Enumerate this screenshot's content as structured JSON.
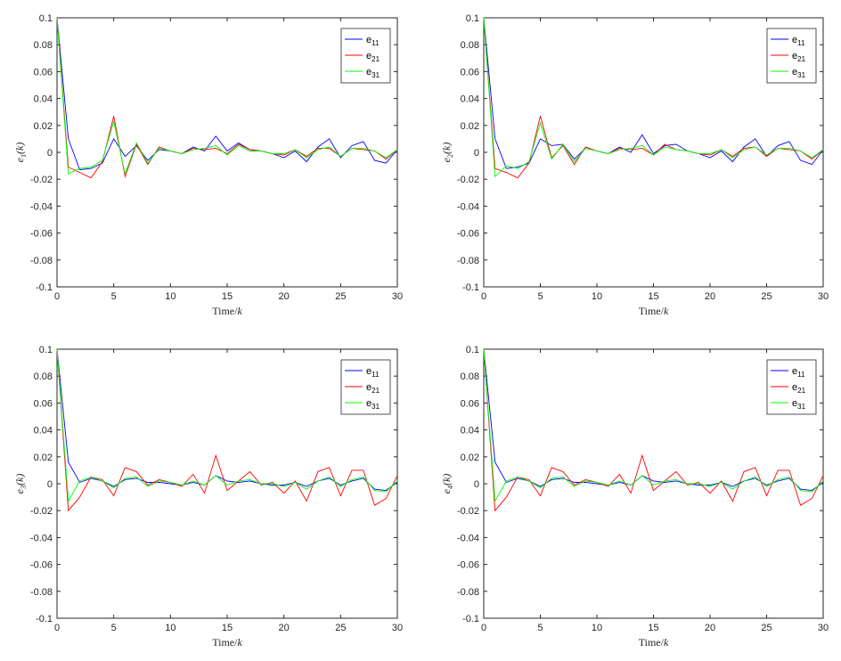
{
  "colors": {
    "e11": "#0000ff",
    "e21": "#ff0000",
    "e31": "#00ff00",
    "axis": "#262626"
  },
  "chart_data": [
    {
      "type": "line",
      "ylabel": {
        "base": "e",
        "sub": "1",
        "arg": "(k)"
      },
      "xlabel": {
        "text": "Time/",
        "italic": "k"
      },
      "xlim": [
        0,
        30
      ],
      "ylim": [
        -0.1,
        0.1
      ],
      "xticks": [
        "0",
        "5",
        "10",
        "15",
        "20",
        "25",
        "30"
      ],
      "yticks": [
        "-0.1",
        "-0.08",
        "-0.06",
        "-0.04",
        "-0.02",
        "0",
        "0.02",
        "0.04",
        "0.06",
        "0.08",
        "0.1"
      ],
      "legend_position": "top-right",
      "x": [
        0,
        1,
        2,
        3,
        4,
        5,
        6,
        7,
        8,
        9,
        10,
        11,
        12,
        13,
        14,
        15,
        16,
        17,
        18,
        19,
        20,
        21,
        22,
        23,
        24,
        25,
        26,
        27,
        28,
        29,
        30
      ],
      "series": [
        {
          "name": "e",
          "sub": "11",
          "color": "#0000ff",
          "values": [
            0.1,
            0.01,
            -0.013,
            -0.012,
            -0.008,
            0.01,
            -0.003,
            0.005,
            -0.006,
            0.002,
            0.001,
            -0.001,
            0.004,
            0.001,
            0.012,
            0.001,
            0.007,
            0.002,
            0.001,
            -0.001,
            -0.004,
            0.001,
            -0.007,
            0.004,
            0.01,
            -0.004,
            0.005,
            0.008,
            -0.006,
            -0.008,
            0.002
          ]
        },
        {
          "name": "e",
          "sub": "21",
          "color": "#ff0000",
          "values": [
            0.1,
            -0.011,
            -0.015,
            -0.019,
            -0.007,
            0.027,
            -0.018,
            0.006,
            -0.009,
            0.004,
            0.001,
            -0.001,
            0.003,
            0.002,
            0.003,
            -0.001,
            0.006,
            0.002,
            0.001,
            -0.001,
            -0.002,
            0.002,
            -0.003,
            0.003,
            0.003,
            -0.003,
            0.003,
            0.002,
            0.001,
            -0.005,
            0.002
          ]
        },
        {
          "name": "e",
          "sub": "31",
          "color": "#00ff00",
          "values": [
            0.1,
            -0.016,
            -0.012,
            -0.011,
            -0.006,
            0.023,
            -0.016,
            0.007,
            -0.008,
            0.003,
            0.001,
            -0.001,
            0.002,
            0.003,
            0.005,
            -0.002,
            0.005,
            0.001,
            0.001,
            -0.001,
            -0.001,
            0.002,
            -0.004,
            0.002,
            0.004,
            -0.003,
            0.003,
            0.003,
            0.001,
            -0.004,
            0.002
          ]
        }
      ]
    },
    {
      "type": "line",
      "ylabel": {
        "base": "e",
        "sub": "2",
        "arg": "(k)"
      },
      "xlabel": {
        "text": "Time/",
        "italic": "k"
      },
      "xlim": [
        0,
        30
      ],
      "ylim": [
        -0.1,
        0.1
      ],
      "xticks": [
        "0",
        "5",
        "10",
        "15",
        "20",
        "25",
        "30"
      ],
      "yticks": [
        "-0.1",
        "-0.08",
        "-0.06",
        "-0.04",
        "-0.02",
        "0",
        "0.02",
        "0.04",
        "0.06",
        "0.08",
        "0.1"
      ],
      "legend_position": "top-right",
      "x": [
        0,
        1,
        2,
        3,
        4,
        5,
        6,
        7,
        8,
        9,
        10,
        11,
        12,
        13,
        14,
        15,
        16,
        17,
        18,
        19,
        20,
        21,
        22,
        23,
        24,
        25,
        26,
        27,
        28,
        29,
        30
      ],
      "series": [
        {
          "name": "e",
          "sub": "11",
          "color": "#0000ff",
          "values": [
            0.1,
            0.01,
            -0.012,
            -0.011,
            -0.008,
            0.01,
            0.005,
            0.006,
            -0.005,
            0.003,
            0.001,
            -0.001,
            0.004,
            0.0,
            0.013,
            -0.001,
            0.005,
            0.006,
            0.001,
            -0.001,
            -0.004,
            0.001,
            -0.007,
            0.004,
            0.01,
            -0.003,
            0.005,
            0.008,
            -0.006,
            -0.009,
            0.002
          ]
        },
        {
          "name": "e",
          "sub": "21",
          "color": "#ff0000",
          "values": [
            0.1,
            -0.012,
            -0.015,
            -0.019,
            -0.008,
            0.027,
            -0.004,
            0.005,
            -0.009,
            0.004,
            0.001,
            -0.001,
            0.003,
            0.002,
            0.003,
            -0.002,
            0.006,
            0.002,
            0.001,
            -0.001,
            -0.002,
            0.002,
            -0.003,
            0.003,
            0.004,
            -0.003,
            0.003,
            0.002,
            0.001,
            -0.005,
            0.002
          ]
        },
        {
          "name": "e",
          "sub": "31",
          "color": "#00ff00",
          "values": [
            0.1,
            -0.018,
            -0.01,
            -0.012,
            -0.007,
            0.022,
            -0.005,
            0.006,
            -0.007,
            0.003,
            0.001,
            -0.001,
            0.002,
            0.003,
            0.005,
            -0.002,
            0.004,
            0.002,
            0.001,
            -0.001,
            -0.001,
            0.002,
            -0.004,
            0.002,
            0.004,
            -0.002,
            0.003,
            0.003,
            0.001,
            -0.004,
            0.002
          ]
        }
      ]
    },
    {
      "type": "line",
      "ylabel": {
        "base": "e",
        "sub": "3",
        "arg": "(k)"
      },
      "xlabel": {
        "text": "Time/",
        "italic": "k"
      },
      "xlim": [
        0,
        30
      ],
      "ylim": [
        -0.1,
        0.1
      ],
      "xticks": [
        "0",
        "5",
        "10",
        "15",
        "20",
        "25",
        "30"
      ],
      "yticks": [
        "-0.1",
        "-0.08",
        "-0.06",
        "-0.04",
        "-0.02",
        "0",
        "0.02",
        "0.04",
        "0.06",
        "0.08",
        "0.1"
      ],
      "legend_position": "top-right",
      "x": [
        0,
        1,
        2,
        3,
        4,
        5,
        6,
        7,
        8,
        9,
        10,
        11,
        12,
        13,
        14,
        15,
        16,
        17,
        18,
        19,
        20,
        21,
        22,
        23,
        24,
        25,
        26,
        27,
        28,
        29,
        30
      ],
      "series": [
        {
          "name": "e",
          "sub": "11",
          "color": "#0000ff",
          "values": [
            0.1,
            0.016,
            0.001,
            0.004,
            0.002,
            -0.002,
            0.003,
            0.004,
            0.001,
            0.001,
            0.0,
            -0.001,
            0.001,
            -0.001,
            0.006,
            0.002,
            0.001,
            0.002,
            0.0,
            -0.001,
            -0.001,
            0.001,
            -0.002,
            0.002,
            0.004,
            -0.001,
            0.002,
            0.004,
            -0.004,
            -0.005,
            0.001
          ]
        },
        {
          "name": "e",
          "sub": "21",
          "color": "#ff0000",
          "values": [
            0.1,
            -0.02,
            -0.01,
            0.005,
            0.003,
            -0.009,
            0.012,
            0.009,
            -0.001,
            0.003,
            0.001,
            -0.002,
            0.007,
            -0.007,
            0.021,
            -0.005,
            0.002,
            0.009,
            -0.001,
            0.001,
            -0.007,
            0.002,
            -0.013,
            0.009,
            0.012,
            -0.009,
            0.01,
            0.01,
            -0.016,
            -0.011,
            0.006
          ]
        },
        {
          "name": "e",
          "sub": "31",
          "color": "#00ff00",
          "values": [
            0.1,
            -0.013,
            0.002,
            0.005,
            0.002,
            -0.003,
            0.004,
            0.005,
            -0.002,
            0.002,
            0.001,
            -0.001,
            0.002,
            -0.001,
            0.006,
            -0.001,
            0.002,
            0.003,
            0.0,
            0.0,
            -0.002,
            0.001,
            -0.004,
            0.002,
            0.005,
            -0.002,
            0.003,
            0.005,
            -0.005,
            -0.006,
            0.002
          ]
        }
      ]
    },
    {
      "type": "line",
      "ylabel": {
        "base": "e",
        "sub": "4",
        "arg": "(k)"
      },
      "xlabel": {
        "text": "Time/",
        "italic": "k"
      },
      "xlim": [
        0,
        30
      ],
      "ylim": [
        -0.1,
        0.1
      ],
      "xticks": [
        "0",
        "5",
        "10",
        "15",
        "20",
        "25",
        "30"
      ],
      "yticks": [
        "-0.1",
        "-0.08",
        "-0.06",
        "-0.04",
        "-0.02",
        "0",
        "0.02",
        "0.04",
        "0.06",
        "0.08",
        "0.1"
      ],
      "legend_position": "top-right",
      "x": [
        0,
        1,
        2,
        3,
        4,
        5,
        6,
        7,
        8,
        9,
        10,
        11,
        12,
        13,
        14,
        15,
        16,
        17,
        18,
        19,
        20,
        21,
        22,
        23,
        24,
        25,
        26,
        27,
        28,
        29,
        30
      ],
      "series": [
        {
          "name": "e",
          "sub": "11",
          "color": "#0000ff",
          "values": [
            0.1,
            0.016,
            0.001,
            0.004,
            0.002,
            -0.002,
            0.003,
            0.004,
            0.001,
            0.001,
            0.0,
            -0.001,
            0.001,
            -0.001,
            0.006,
            0.002,
            0.001,
            0.002,
            0.0,
            -0.001,
            -0.001,
            0.001,
            -0.002,
            0.002,
            0.004,
            -0.001,
            0.002,
            0.004,
            -0.004,
            -0.005,
            0.001
          ]
        },
        {
          "name": "e",
          "sub": "21",
          "color": "#ff0000",
          "values": [
            0.1,
            -0.02,
            -0.01,
            0.005,
            0.003,
            -0.009,
            0.012,
            0.009,
            -0.001,
            0.003,
            0.001,
            -0.002,
            0.007,
            -0.007,
            0.021,
            -0.005,
            0.002,
            0.009,
            -0.001,
            0.001,
            -0.007,
            0.002,
            -0.013,
            0.009,
            0.012,
            -0.009,
            0.01,
            0.01,
            -0.016,
            -0.011,
            0.006
          ]
        },
        {
          "name": "e",
          "sub": "31",
          "color": "#00ff00",
          "values": [
            0.1,
            -0.013,
            0.002,
            0.005,
            0.002,
            -0.003,
            0.004,
            0.005,
            -0.002,
            0.002,
            0.001,
            -0.001,
            0.002,
            -0.001,
            0.006,
            -0.001,
            0.002,
            0.003,
            0.0,
            0.0,
            -0.002,
            0.001,
            -0.004,
            0.002,
            0.005,
            -0.002,
            0.003,
            0.005,
            -0.005,
            -0.006,
            0.002
          ]
        }
      ]
    }
  ]
}
